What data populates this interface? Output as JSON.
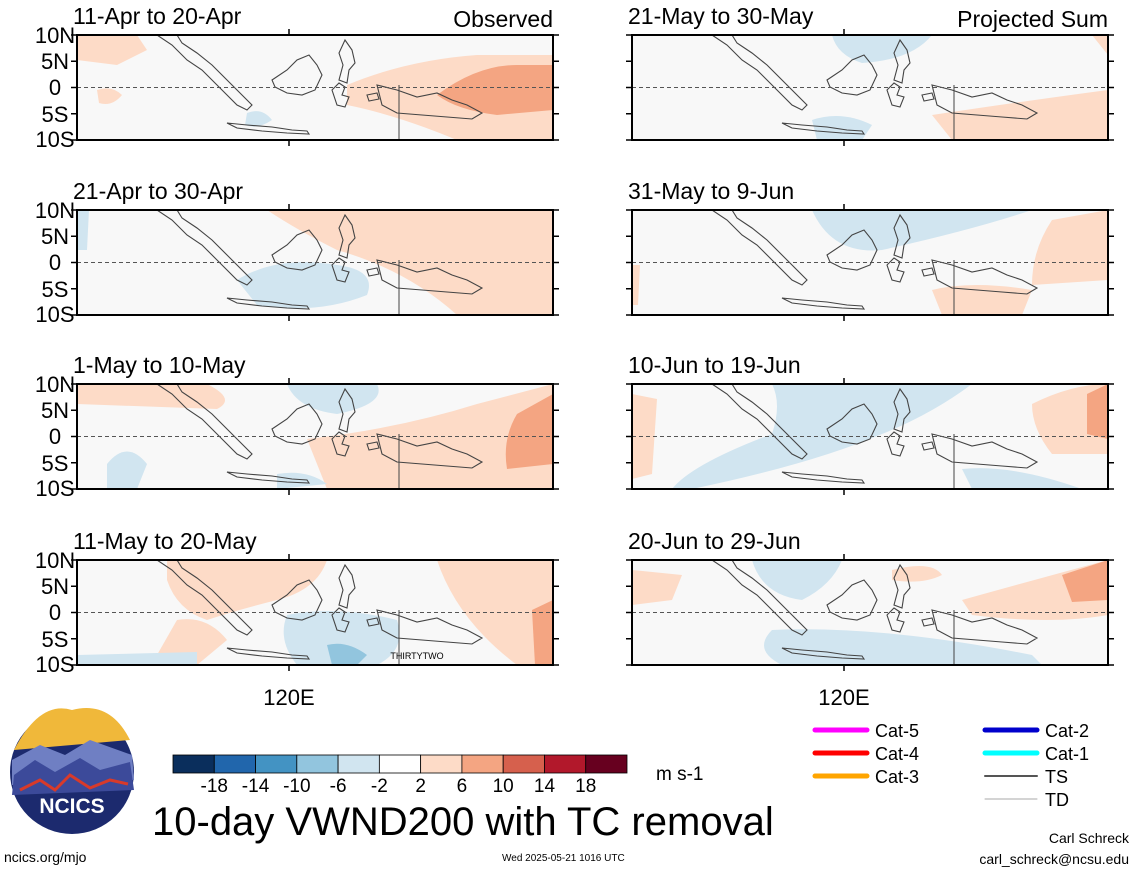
{
  "chart_data": {
    "type": "heatmap",
    "title": "10-day VWND200 with TC removal",
    "units": "m s-1",
    "columns": [
      {
        "label": "Observed"
      },
      {
        "label": "Projected Sum"
      }
    ],
    "y_ticks": [
      "10N",
      "5N",
      "0",
      "5S",
      "10S"
    ],
    "x_tick": "120E",
    "panels": [
      {
        "title": "11-Apr to 20-Apr",
        "col": 0,
        "row": 0,
        "tc_label": ""
      },
      {
        "title": "21-Apr to 30-Apr",
        "col": 0,
        "row": 1,
        "tc_label": ""
      },
      {
        "title": "1-May to 10-May",
        "col": 0,
        "row": 2,
        "tc_label": ""
      },
      {
        "title": "11-May to 20-May",
        "col": 0,
        "row": 3,
        "tc_label": "THIRTYTWO"
      },
      {
        "title": "21-May to 30-May",
        "col": 1,
        "row": 0,
        "tc_label": ""
      },
      {
        "title": "31-May to 9-Jun",
        "col": 1,
        "row": 1,
        "tc_label": ""
      },
      {
        "title": "10-Jun to 19-Jun",
        "col": 1,
        "row": 2,
        "tc_label": ""
      },
      {
        "title": "20-Jun to 29-Jun",
        "col": 1,
        "row": 3,
        "tc_label": ""
      }
    ],
    "colorbar": {
      "tick_labels": [
        "-18",
        "-14",
        "-10",
        "-6",
        "-2",
        "2",
        "6",
        "10",
        "14",
        "18"
      ],
      "colors": [
        "#0a2e5c",
        "#2166ac",
        "#4393c3",
        "#92c5de",
        "#d1e5f0",
        "#ffffff",
        "#fddbc7",
        "#f4a582",
        "#d6604d",
        "#b2182b",
        "#67001f"
      ]
    },
    "legend": [
      {
        "label": "Cat-5",
        "color": "#ff00ff"
      },
      {
        "label": "Cat-4",
        "color": "#ff0000"
      },
      {
        "label": "Cat-3",
        "color": "#ffa500"
      },
      {
        "label": "Cat-2",
        "color": "#0000cc"
      },
      {
        "label": "Cat-1",
        "color": "#00ffff"
      },
      {
        "label": "TS",
        "color": "#555555"
      },
      {
        "label": "TD",
        "color": "#aaaaaa"
      }
    ]
  },
  "logo": {
    "text": "NCICS"
  },
  "footer": {
    "url": "ncics.org/mjo",
    "timestamp": "Wed 2025-05-21 1016 UTC",
    "author": "Carl Schreck",
    "email": "carl_schreck@ncsu.edu"
  }
}
